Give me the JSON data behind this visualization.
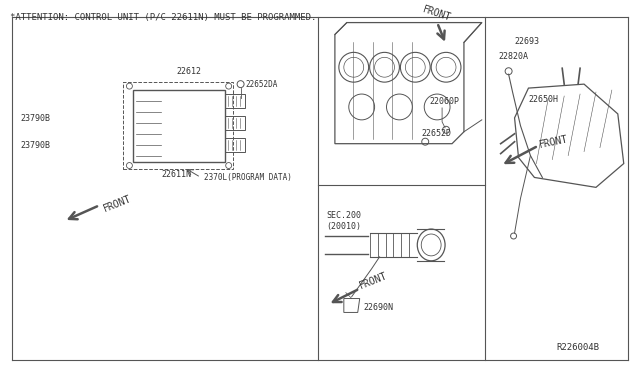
{
  "title": "*ATTENTION: CONTROL UNIT (P/C 22611N) MUST BE PROGRAMMED.",
  "diagram_id": "R226004B",
  "bg_color": "#ffffff",
  "line_color": "#555555",
  "text_color": "#333333",
  "title_fontsize": 6.5,
  "label_fontsize": 6.0,
  "parts": {
    "ecm_label": "22611N",
    "ecm_sublabel": "2370L(PROGRAM DATA)",
    "bracket_label": "22612",
    "screw_label": "22652DA",
    "bracket_label2": "23790B",
    "bracket_label3": "23790B",
    "engine_block_label1": "22060P",
    "engine_block_label2": "22652D",
    "sensor_right1": "22693",
    "sensor_right2": "22820A",
    "sensor_right3": "22650H",
    "exhaust_section": "SEC.200\n(20010)",
    "exhaust_sensor": "22690N"
  }
}
